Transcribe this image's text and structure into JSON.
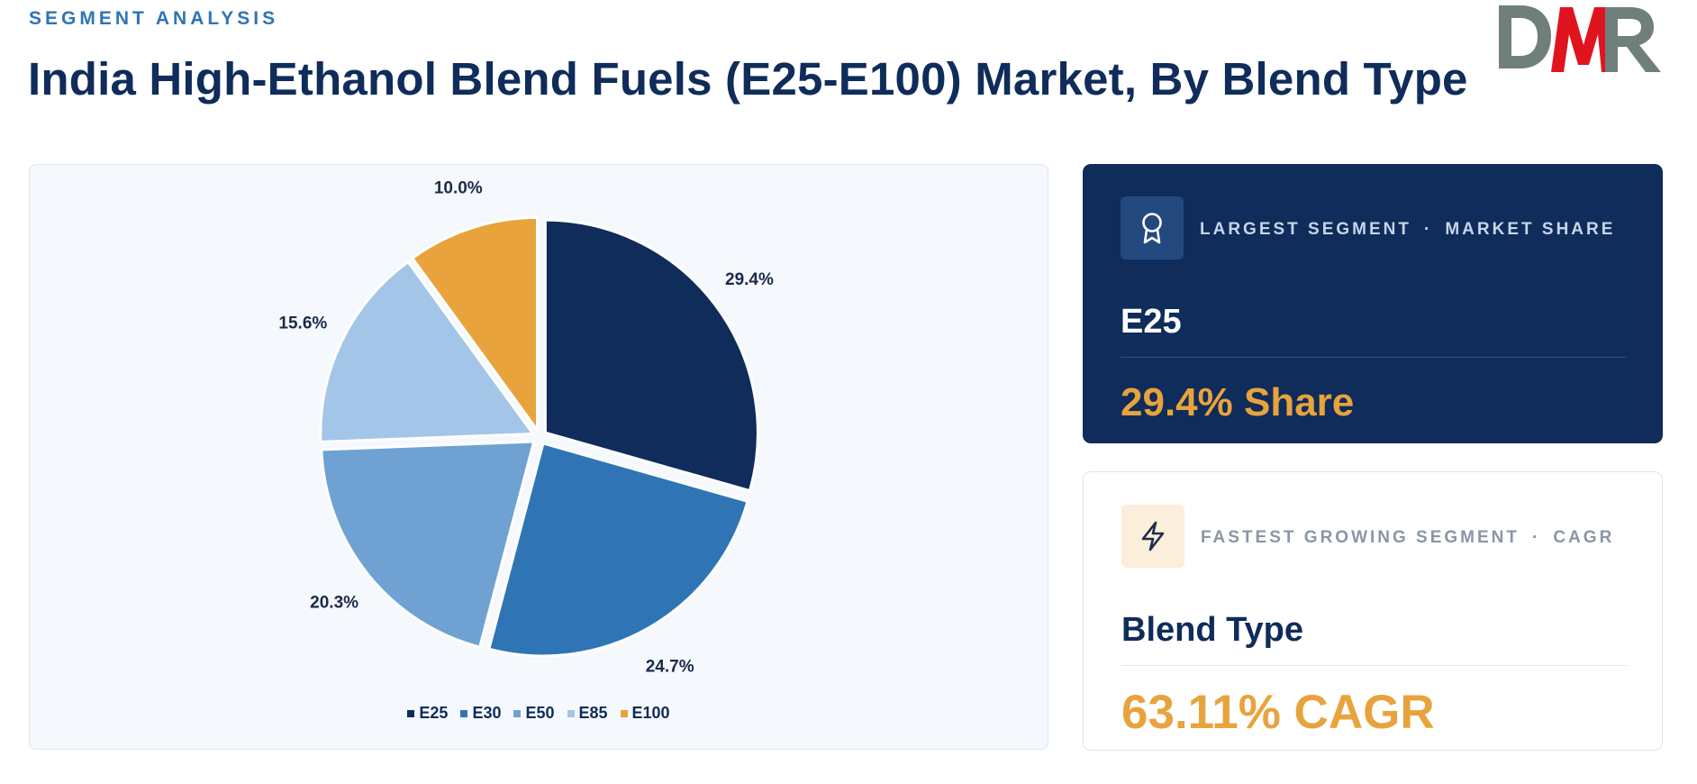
{
  "header": {
    "eyebrow": "SEGMENT ANALYSIS",
    "title": "India High-Ethanol Blend Fuels (E25-E100) Market, By Blend Type"
  },
  "logo": {
    "text": "DMR",
    "colors": {
      "d": "#6f7f7b",
      "m": "#e0141e",
      "r": "#6f7f7b"
    }
  },
  "chart_data": {
    "type": "pie",
    "title": "",
    "categories": [
      "E25",
      "E30",
      "E50",
      "E85",
      "E100"
    ],
    "values": [
      29.4,
      24.7,
      20.3,
      15.6,
      10.0
    ],
    "labels": [
      "29.4%",
      "24.7%",
      "20.3%",
      "15.6%",
      "10.0%"
    ],
    "colors": [
      "#0f2c5a",
      "#2f75b5",
      "#6fa2d2",
      "#a3c5e7",
      "#e8a33d"
    ],
    "legend_position": "bottom",
    "exploded": true
  },
  "cards": {
    "largest": {
      "label_a": "LARGEST SEGMENT",
      "separator": "·",
      "label_b": "MARKET SHARE",
      "name": "E25",
      "value": "29.4% Share",
      "icon": "award-icon"
    },
    "fastest": {
      "label_a": "FASTEST GROWING SEGMENT",
      "separator": "·",
      "label_b": "CAGR",
      "name": "Blend Type",
      "value": "63.11% CAGR",
      "icon": "lightning-icon"
    }
  }
}
